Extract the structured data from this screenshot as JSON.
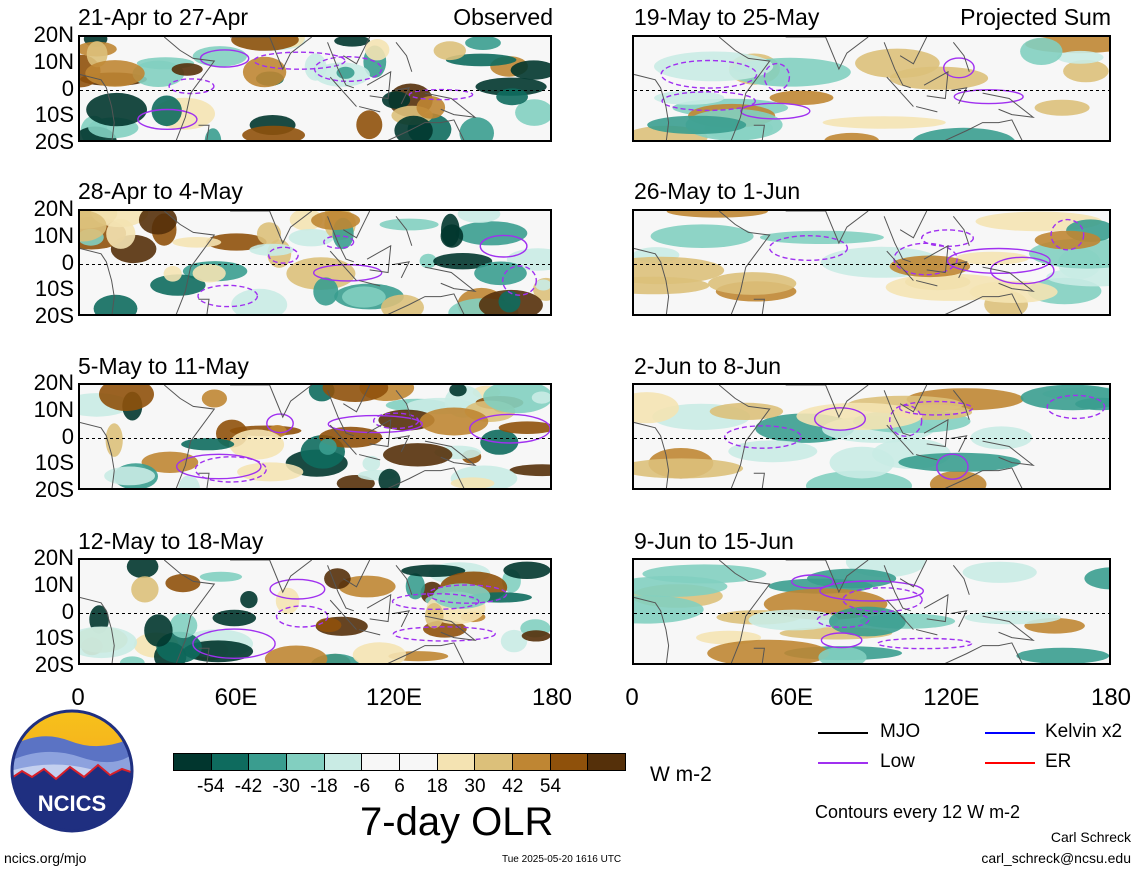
{
  "panels": {
    "left": [
      {
        "title": "21-Apr to 27-Apr",
        "tag": "Observed"
      },
      {
        "title": "28-Apr to 4-May",
        "tag": ""
      },
      {
        "title": "5-May to 11-May",
        "tag": ""
      },
      {
        "title": "12-May to 18-May",
        "tag": ""
      }
    ],
    "right": [
      {
        "title": "19-May to 25-May",
        "tag": "Projected Sum"
      },
      {
        "title": "26-May to 1-Jun",
        "tag": ""
      },
      {
        "title": "2-Jun to 8-Jun",
        "tag": ""
      },
      {
        "title": "9-Jun to 15-Jun",
        "tag": ""
      }
    ]
  },
  "lat_labels": [
    "20N",
    "10N",
    "0",
    "10S",
    "20S"
  ],
  "lon_labels": [
    "0",
    "60E",
    "120E",
    "180"
  ],
  "colorbar": {
    "colors": [
      "#01362e",
      "#0e6b5e",
      "#3a9d8f",
      "#82cfc0",
      "#c9ebe4",
      "#f7f7f7",
      "#f7f7f7",
      "#f4e3b2",
      "#dcc07a",
      "#bf8633",
      "#8f510b",
      "#55300a"
    ],
    "ticks": [
      "-54",
      "-42",
      "-30",
      "-18",
      "-6",
      "6",
      "18",
      "30",
      "42",
      "54"
    ],
    "units": "W m-2",
    "title": "7-day OLR"
  },
  "legend": {
    "items": [
      {
        "label": "MJO",
        "color": "#000000"
      },
      {
        "label": "Kelvin x2",
        "color": "#0000ff"
      },
      {
        "label": "Low",
        "color": "#a030f0"
      },
      {
        "label": "ER",
        "color": "#ff0000"
      }
    ],
    "note": "Contours every 12 W m-2"
  },
  "logo_text": "NCICS",
  "footer": {
    "url": "ncics.org/mjo",
    "timestamp": "Tue 2025-05-20 1616 UTC",
    "author": "Carl Schreck",
    "email": "carl_schreck@ncsu.edu"
  }
}
